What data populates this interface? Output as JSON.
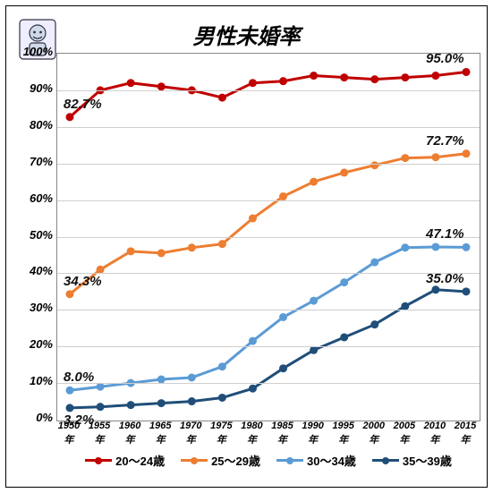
{
  "title": "男性未婚率",
  "icon_name": "mascot-icon",
  "years": [
    1950,
    1955,
    1960,
    1965,
    1970,
    1975,
    1980,
    1985,
    1990,
    1995,
    2000,
    2005,
    2010,
    2015
  ],
  "x_tick_year_suffix": "年",
  "ylim": [
    0,
    100
  ],
  "ytick_step": 10,
  "ytick_suffix": "%",
  "grid_color": "#cfcfcf",
  "plot_border_color": "#888888",
  "tick_font_size": 13,
  "title_fontsize": 24,
  "series": [
    {
      "name": "20～24歳",
      "color": "#c00000",
      "values": [
        82.7,
        90,
        92,
        91,
        90,
        88,
        92,
        92.5,
        94,
        93.5,
        93,
        93.5,
        94,
        95
      ],
      "start_label": "82.7%",
      "end_label": "95.0%"
    },
    {
      "name": "25～29歳",
      "color": "#ed7d31",
      "values": [
        34.3,
        41,
        46,
        45.5,
        47,
        48,
        55,
        61,
        65,
        67.5,
        69.5,
        71.5,
        71.7,
        72.7
      ],
      "start_label": "34.3%",
      "end_label": "72.7%"
    },
    {
      "name": "30～34歳",
      "color": "#5b9bd5",
      "values": [
        8.0,
        9,
        10,
        11,
        11.5,
        14.5,
        21.5,
        28,
        32.5,
        37.5,
        43,
        47,
        47.2,
        47.1
      ],
      "start_label": "8.0%",
      "end_label": "47.1%"
    },
    {
      "name": "35～39歳",
      "color": "#1f4e79",
      "values": [
        3.2,
        3.5,
        4,
        4.5,
        5,
        6,
        8.5,
        14,
        19,
        22.5,
        26,
        31,
        35.5,
        35.0
      ],
      "start_label": "3.2%",
      "end_label": "35.0%"
    }
  ],
  "line_width": 3,
  "marker_radius": 4.5,
  "legend_labels": [
    "20～24歳",
    "25～29歳",
    "30～34歳",
    "35～39歳"
  ]
}
